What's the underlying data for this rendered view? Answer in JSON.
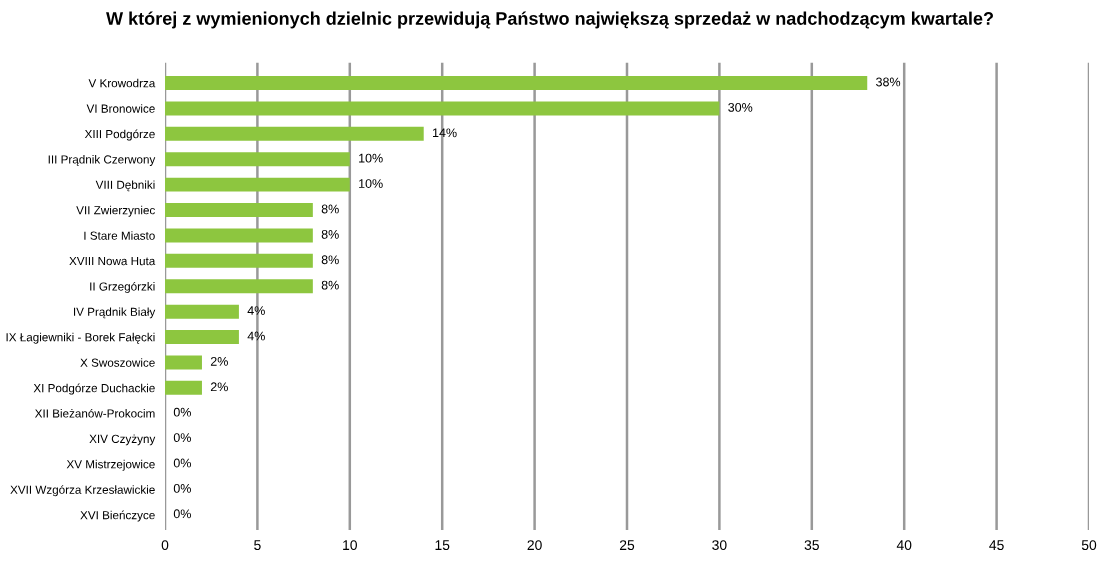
{
  "chart_data": {
    "type": "bar",
    "orientation": "horizontal",
    "title": "W której z wymienionych dzielnic przewidują Państwo największą sprzedaż w nadchodzącym kwartale?",
    "categories": [
      "V Krowodrza",
      "VI Bronowice",
      "XIII Podgórze",
      "III Prądnik Czerwony",
      "VIII Dębniki",
      "VII Zwierzyniec",
      "I Stare Miasto",
      "XVIII Nowa Huta",
      "II Grzegórzki",
      "IV Prądnik Biały",
      "IX Łagiewniki - Borek Fałęcki",
      "X Swoszowice",
      "XI Podgórze Duchackie",
      "XII Bieżanów-Prokocim",
      "XIV Czyżyny",
      "XV Mistrzejowice",
      "XVII Wzgórza Krzesławickie",
      "XVI Bieńczyce"
    ],
    "values": [
      38,
      30,
      14,
      10,
      10,
      8,
      8,
      8,
      8,
      4,
      4,
      2,
      2,
      0,
      0,
      0,
      0,
      0
    ],
    "value_labels": [
      "38%",
      "30%",
      "14%",
      "10%",
      "10%",
      "8%",
      "8%",
      "8%",
      "8%",
      "4%",
      "4%",
      "2%",
      "2%",
      "0%",
      "0%",
      "0%",
      "0%",
      "0%"
    ],
    "color": "#8dc63f",
    "xlim": [
      0,
      50
    ],
    "xticks": [
      0,
      5,
      10,
      15,
      20,
      25,
      30,
      35,
      40,
      45,
      50
    ],
    "grid": "x"
  }
}
